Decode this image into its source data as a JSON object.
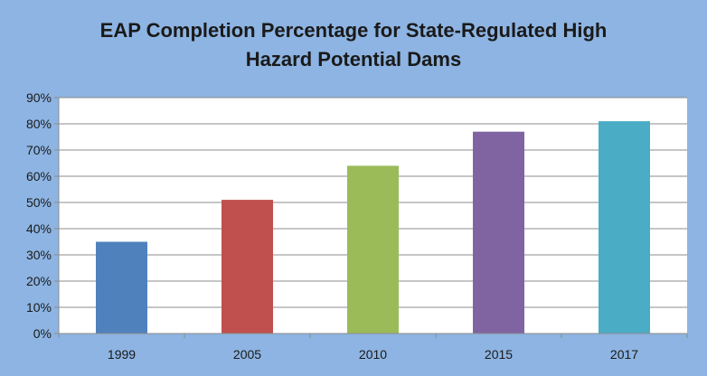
{
  "chart_data": {
    "type": "bar",
    "title_lines": [
      "EAP Completion Percentage for State-Regulated High",
      "Hazard Potential Dams"
    ],
    "categories": [
      "1999",
      "2005",
      "2010",
      "2015",
      "2017"
    ],
    "values": [
      35,
      51,
      64,
      77,
      81
    ],
    "colors": [
      "#4f81bd",
      "#c0504d",
      "#9bbb59",
      "#8064a2",
      "#4bacc6"
    ],
    "ylim": [
      0,
      90
    ],
    "ytick_step": 10,
    "ytick_suffix": "%",
    "grid": true,
    "legend": "none",
    "xlabel": "",
    "ylabel": ""
  }
}
